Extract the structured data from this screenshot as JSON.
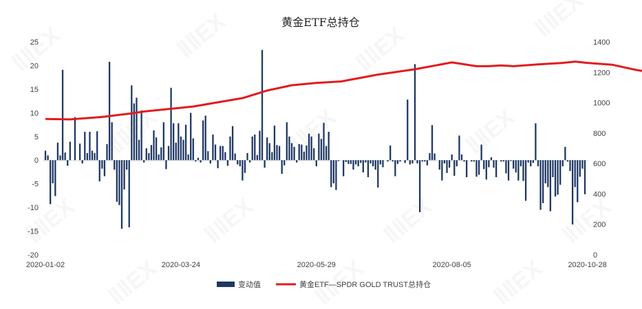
{
  "chart_data": {
    "type": "bar+line",
    "title": "黄金ETF总持仓",
    "x_tick_labels": [
      "2020-01-02",
      "2020-03-24",
      "2020-05-29",
      "2020-08-05",
      "2020-10-28"
    ],
    "x_tick_label_indices": [
      0,
      55,
      110,
      165,
      220
    ],
    "y_left": {
      "ylim": [
        -20,
        25
      ],
      "ticks": [
        -20,
        -15,
        -10,
        -5,
        0,
        5,
        10,
        15,
        20,
        25
      ]
    },
    "y_right": {
      "ylim": [
        0,
        1400
      ],
      "ticks": [
        0,
        200,
        400,
        600,
        800,
        1000,
        1200,
        1400
      ]
    },
    "grid": false,
    "legend_position": "bottom",
    "colors": {
      "bars": "#1f3864",
      "line": "#e31a1c"
    },
    "series": [
      {
        "name": "变动值",
        "type": "bar",
        "axis": "left",
        "values": [
          2,
          1,
          -9.3,
          -4.9,
          -7.6,
          3.7,
          1,
          19.1,
          1.6,
          -1.2,
          3.9,
          0,
          9.1,
          0,
          3.5,
          -0.7,
          6,
          1.5,
          6,
          2,
          1.5,
          6.1,
          -4.5,
          -1.8,
          -3.4,
          3.4,
          20.8,
          8,
          -2,
          -8.8,
          -9.5,
          -14.5,
          -6.2,
          -2,
          -14.2,
          15.8,
          12,
          13.2,
          4.3,
          10.5,
          -0.5,
          2.5,
          1.5,
          3.2,
          6.3,
          4.8,
          1.2,
          2.7,
          8,
          -1.9,
          3,
          15.3,
          7.8,
          3.7,
          7.8,
          5,
          4.3,
          7.5,
          1.2,
          10,
          4.6,
          -0.3,
          0.5,
          -0.5,
          8.4,
          9.4,
          1.9,
          -0.7,
          5.4,
          3.3,
          -1.7,
          3,
          3,
          1.7,
          -1.2,
          5,
          7.2,
          1.4,
          -0.9,
          -1.3,
          -4.3,
          -2.7,
          1.5,
          -0.5,
          5,
          5.4,
          1.1,
          6.2,
          23.3,
          -1.6,
          4.8,
          3.6,
          1.7,
          7.3,
          3.2,
          3,
          -2.9,
          -1.1,
          8,
          5,
          3.6,
          2.8,
          -0.5,
          3.4,
          3.3,
          1.8,
          3.1,
          5.6,
          5,
          2.5,
          -1.3,
          5.6,
          4.5,
          7.9,
          3,
          6,
          -5.7,
          -4.9,
          -6.3,
          -0.2,
          0,
          -3.4,
          -0.4,
          -0.8,
          -0.8,
          -2,
          -0.9,
          -1.3,
          -0.6,
          -2.6,
          -0.5,
          -3.6,
          -0.7,
          -1.3,
          -2,
          -5.8,
          -0.9,
          -1.5,
          0,
          -0.3,
          3.1,
          -0.3,
          -3.4,
          -0.8,
          -0.3,
          0,
          -0.6,
          12.8,
          -0.9,
          -0.7,
          20.3,
          -0.7,
          -11,
          -0.3,
          -0.3,
          -1.1,
          1.5,
          7.4,
          1.4,
          0,
          -2,
          -4.3,
          -0.7,
          -2.7,
          -1.6,
          1.2,
          -3.3,
          -1.3,
          5.2,
          1.2,
          -0.3,
          -3.6,
          0,
          -0.3,
          -0.3,
          -3.5,
          -3.1,
          3.3,
          -1.9,
          -4.1,
          -1.5,
          0.6,
          -1.6,
          -3.6,
          0,
          -0.3,
          -0.3,
          -2.8,
          -4.3,
          -0.2,
          -1.8,
          -2.6,
          -4.3,
          -1.3,
          -4.4,
          -8.6,
          -0.5,
          -1.3,
          -0.6,
          7.8,
          -1.3,
          -10.5,
          -9.1,
          -4.9,
          -5.7,
          -10.8,
          -3.6,
          -7.7,
          -7.3,
          -5.2,
          -1.3,
          2.8,
          -0.3,
          -2.3,
          -13.6,
          -5.7,
          -8.9,
          -3.5,
          -1.8,
          -7.2
        ]
      },
      {
        "name": "黄金ETF—SPDR GOLD TRUST总持仓",
        "type": "line",
        "axis": "right",
        "x": [
          0,
          10,
          22,
          25,
          30,
          35,
          40,
          60,
          80,
          90,
          100,
          110,
          120,
          135,
          150,
          165,
          175,
          180,
          185,
          190,
          200,
          210,
          215,
          220,
          230,
          240,
          248,
          260
        ],
        "values": [
          893,
          890,
          905,
          910,
          920,
          930,
          942,
          975,
          1030,
          1080,
          1115,
          1130,
          1140,
          1185,
          1220,
          1265,
          1240,
          1240,
          1245,
          1240,
          1252,
          1262,
          1270,
          1262,
          1250,
          1215,
          1195,
          1180
        ]
      }
    ]
  }
}
